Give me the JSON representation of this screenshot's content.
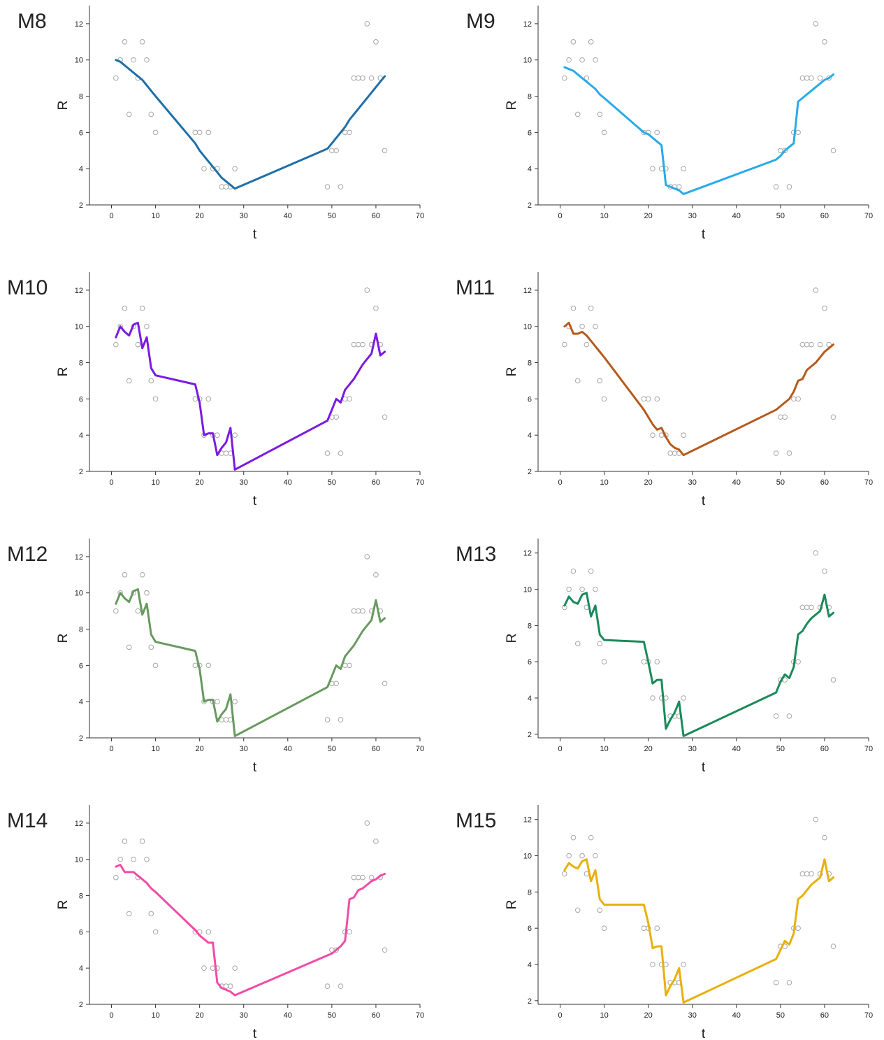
{
  "chart_data": [
    {
      "type": "line",
      "title": "M8",
      "x_label": "t",
      "y_label": "R",
      "xlim": [
        -5,
        70
      ],
      "ylim": [
        2,
        13
      ],
      "xticks": [
        0,
        10,
        20,
        30,
        40,
        50,
        60,
        70
      ],
      "yticks": [
        2,
        4,
        6,
        8,
        10,
        12
      ],
      "x": [
        1,
        2,
        3,
        4,
        5,
        6,
        7,
        8,
        9,
        10,
        19,
        20,
        21,
        22,
        23,
        24,
        25,
        26,
        27,
        28,
        49,
        50,
        51,
        52,
        53,
        54,
        55,
        56,
        57,
        58,
        59,
        60,
        61,
        62
      ],
      "series": [
        {
          "marker": "circle",
          "color": "#a6a6a6",
          "values": [
            9,
            10,
            11,
            7,
            10,
            9,
            11,
            10,
            7,
            6,
            6,
            6,
            4,
            6,
            4,
            4,
            3,
            3,
            3,
            4,
            3,
            5,
            5,
            3,
            6,
            6,
            9,
            9,
            9,
            12,
            9,
            11,
            9,
            5
          ]
        },
        {
          "marker": "none",
          "color": "#1f6fa8",
          "values": [
            10,
            9.9,
            9.7,
            9.5,
            9.3,
            9.1,
            8.9,
            8.6,
            8.3,
            8.0,
            5.4,
            5.0,
            4.7,
            4.4,
            4.1,
            3.8,
            3.5,
            3.3,
            3.1,
            2.9,
            5.1,
            5.4,
            5.7,
            6.0,
            6.3,
            6.7,
            7.0,
            7.3,
            7.6,
            7.9,
            8.2,
            8.5,
            8.8,
            9.1
          ]
        }
      ]
    },
    {
      "type": "line",
      "title": "M9",
      "x_label": "t",
      "y_label": "R",
      "xlim": [
        -5,
        70
      ],
      "ylim": [
        2,
        13
      ],
      "xticks": [
        0,
        10,
        20,
        30,
        40,
        50,
        60,
        70
      ],
      "yticks": [
        2,
        4,
        6,
        8,
        10,
        12
      ],
      "x": [
        1,
        2,
        3,
        4,
        5,
        6,
        7,
        8,
        9,
        10,
        19,
        20,
        21,
        22,
        23,
        24,
        25,
        26,
        27,
        28,
        49,
        50,
        51,
        52,
        53,
        54,
        55,
        56,
        57,
        58,
        59,
        60,
        61,
        62
      ],
      "series": [
        {
          "marker": "circle",
          "color": "#a6a6a6",
          "values": [
            9,
            10,
            11,
            7,
            10,
            9,
            11,
            10,
            7,
            6,
            6,
            6,
            4,
            6,
            4,
            4,
            3,
            3,
            3,
            4,
            3,
            5,
            5,
            3,
            6,
            6,
            9,
            9,
            9,
            12,
            9,
            11,
            9,
            5
          ]
        },
        {
          "marker": "none",
          "color": "#29aae8",
          "values": [
            9.6,
            9.5,
            9.4,
            9.2,
            9.0,
            8.8,
            8.6,
            8.4,
            8.1,
            7.9,
            6.0,
            5.9,
            5.7,
            5.5,
            5.3,
            3.1,
            3.0,
            2.9,
            2.8,
            2.6,
            4.5,
            4.7,
            5.0,
            5.2,
            5.4,
            7.7,
            7.9,
            8.1,
            8.3,
            8.5,
            8.7,
            8.9,
            9.0,
            9.2
          ]
        }
      ]
    },
    {
      "type": "line",
      "title": "M10",
      "x_label": "t",
      "y_label": "R",
      "xlim": [
        -5,
        70
      ],
      "ylim": [
        2,
        13
      ],
      "xticks": [
        0,
        10,
        20,
        30,
        40,
        50,
        60,
        70
      ],
      "yticks": [
        2,
        4,
        6,
        8,
        10,
        12
      ],
      "x": [
        1,
        2,
        3,
        4,
        5,
        6,
        7,
        8,
        9,
        10,
        19,
        20,
        21,
        22,
        23,
        24,
        25,
        26,
        27,
        28,
        49,
        50,
        51,
        52,
        53,
        54,
        55,
        56,
        57,
        58,
        59,
        60,
        61,
        62
      ],
      "series": [
        {
          "marker": "circle",
          "color": "#a6a6a6",
          "values": [
            9,
            10,
            11,
            7,
            10,
            9,
            11,
            10,
            7,
            6,
            6,
            6,
            4,
            6,
            4,
            4,
            3,
            3,
            3,
            4,
            3,
            5,
            5,
            3,
            6,
            6,
            9,
            9,
            9,
            12,
            9,
            11,
            9,
            5
          ]
        },
        {
          "marker": "none",
          "color": "#7a1be0",
          "values": [
            9.4,
            10.0,
            9.7,
            9.5,
            10.1,
            10.2,
            8.8,
            9.4,
            7.7,
            7.3,
            6.8,
            5.8,
            4.0,
            4.1,
            4.1,
            2.9,
            3.3,
            3.6,
            4.4,
            2.1,
            4.8,
            5.4,
            6.0,
            5.8,
            6.5,
            6.8,
            7.1,
            7.5,
            7.9,
            8.2,
            8.5,
            9.6,
            8.4,
            8.6
          ]
        }
      ]
    },
    {
      "type": "line",
      "title": "M11",
      "x_label": "t",
      "y_label": "R",
      "xlim": [
        -5,
        70
      ],
      "ylim": [
        2,
        13
      ],
      "xticks": [
        0,
        10,
        20,
        30,
        40,
        50,
        60,
        70
      ],
      "yticks": [
        2,
        4,
        6,
        8,
        10,
        12
      ],
      "x": [
        1,
        2,
        3,
        4,
        5,
        6,
        7,
        8,
        9,
        10,
        19,
        20,
        21,
        22,
        23,
        24,
        25,
        26,
        27,
        28,
        49,
        50,
        51,
        52,
        53,
        54,
        55,
        56,
        57,
        58,
        59,
        60,
        61,
        62
      ],
      "series": [
        {
          "marker": "circle",
          "color": "#a6a6a6",
          "values": [
            9,
            10,
            11,
            7,
            10,
            9,
            11,
            10,
            7,
            6,
            6,
            6,
            4,
            6,
            4,
            4,
            3,
            3,
            3,
            4,
            3,
            5,
            5,
            3,
            6,
            6,
            9,
            9,
            9,
            12,
            9,
            11,
            9,
            5
          ]
        },
        {
          "marker": "none",
          "color": "#b55a1c",
          "values": [
            10.0,
            10.2,
            9.6,
            9.6,
            9.7,
            9.5,
            9.2,
            8.9,
            8.6,
            8.3,
            5.4,
            5.0,
            4.6,
            4.3,
            4.4,
            3.9,
            3.5,
            3.3,
            3.2,
            2.9,
            5.4,
            5.6,
            5.8,
            6.0,
            6.4,
            7.0,
            7.1,
            7.6,
            7.8,
            8.0,
            8.3,
            8.6,
            8.8,
            9.0
          ]
        }
      ]
    },
    {
      "type": "line",
      "title": "M12",
      "x_label": "t",
      "y_label": "R",
      "xlim": [
        -5,
        70
      ],
      "ylim": [
        2,
        13
      ],
      "xticks": [
        0,
        10,
        20,
        30,
        40,
        50,
        60,
        70
      ],
      "yticks": [
        2,
        4,
        6,
        8,
        10,
        12
      ],
      "x": [
        1,
        2,
        3,
        4,
        5,
        6,
        7,
        8,
        9,
        10,
        19,
        20,
        21,
        22,
        23,
        24,
        25,
        26,
        27,
        28,
        49,
        50,
        51,
        52,
        53,
        54,
        55,
        56,
        57,
        58,
        59,
        60,
        61,
        62
      ],
      "series": [
        {
          "marker": "circle",
          "color": "#a6a6a6",
          "values": [
            9,
            10,
            11,
            7,
            10,
            9,
            11,
            10,
            7,
            6,
            6,
            6,
            4,
            6,
            4,
            4,
            3,
            3,
            3,
            4,
            3,
            5,
            5,
            3,
            6,
            6,
            9,
            9,
            9,
            12,
            9,
            11,
            9,
            5
          ]
        },
        {
          "marker": "none",
          "color": "#679a5f",
          "values": [
            9.4,
            10.0,
            9.7,
            9.5,
            10.1,
            10.2,
            8.8,
            9.4,
            7.7,
            7.3,
            6.8,
            5.8,
            4.0,
            4.1,
            4.1,
            2.9,
            3.3,
            3.6,
            4.4,
            2.1,
            4.8,
            5.4,
            6.0,
            5.8,
            6.5,
            6.8,
            7.1,
            7.5,
            7.9,
            8.2,
            8.5,
            9.6,
            8.4,
            8.6
          ]
        }
      ]
    },
    {
      "type": "line",
      "title": "M13",
      "x_label": "t",
      "y_label": "R",
      "xlim": [
        -5,
        70
      ],
      "ylim": [
        1.8,
        12.8
      ],
      "xticks": [
        0,
        10,
        20,
        30,
        40,
        50,
        60,
        70
      ],
      "yticks": [
        2,
        4,
        6,
        8,
        10,
        12
      ],
      "x": [
        1,
        2,
        3,
        4,
        5,
        6,
        7,
        8,
        9,
        10,
        19,
        20,
        21,
        22,
        23,
        24,
        25,
        26,
        27,
        28,
        49,
        50,
        51,
        52,
        53,
        54,
        55,
        56,
        57,
        58,
        59,
        60,
        61,
        62
      ],
      "series": [
        {
          "marker": "circle",
          "color": "#a6a6a6",
          "values": [
            9,
            10,
            11,
            7,
            10,
            9,
            11,
            10,
            7,
            6,
            6,
            6,
            4,
            6,
            4,
            4,
            3,
            3,
            3,
            4,
            3,
            5,
            5,
            3,
            6,
            6,
            9,
            9,
            9,
            12,
            9,
            11,
            9,
            5
          ]
        },
        {
          "marker": "none",
          "color": "#1b8a5a",
          "values": [
            9.1,
            9.6,
            9.3,
            9.2,
            9.7,
            9.8,
            8.5,
            9.1,
            7.5,
            7.2,
            7.1,
            6.0,
            4.8,
            5.0,
            5.0,
            2.3,
            2.8,
            3.2,
            3.8,
            1.9,
            4.3,
            4.9,
            5.3,
            5.1,
            5.7,
            7.5,
            7.7,
            8.1,
            8.4,
            8.6,
            8.8,
            9.7,
            8.5,
            8.7
          ]
        }
      ]
    },
    {
      "type": "line",
      "title": "M14",
      "x_label": "t",
      "y_label": "R",
      "xlim": [
        -5,
        70
      ],
      "ylim": [
        2,
        13
      ],
      "xticks": [
        0,
        10,
        20,
        30,
        40,
        50,
        60,
        70
      ],
      "yticks": [
        2,
        4,
        6,
        8,
        10,
        12
      ],
      "x": [
        1,
        2,
        3,
        4,
        5,
        6,
        7,
        8,
        9,
        10,
        19,
        20,
        21,
        22,
        23,
        24,
        25,
        26,
        27,
        28,
        49,
        50,
        51,
        52,
        53,
        54,
        55,
        56,
        57,
        58,
        59,
        60,
        61,
        62
      ],
      "series": [
        {
          "marker": "circle",
          "color": "#a6a6a6",
          "values": [
            9,
            10,
            11,
            7,
            10,
            9,
            11,
            10,
            7,
            6,
            6,
            6,
            4,
            6,
            4,
            4,
            3,
            3,
            3,
            4,
            3,
            5,
            5,
            3,
            6,
            6,
            9,
            9,
            9,
            12,
            9,
            11,
            9,
            5
          ]
        },
        {
          "marker": "none",
          "color": "#f24ba8",
          "values": [
            9.6,
            9.7,
            9.3,
            9.3,
            9.3,
            9.1,
            8.9,
            8.7,
            8.4,
            8.2,
            6.1,
            5.8,
            5.6,
            5.4,
            5.4,
            3.2,
            2.9,
            2.8,
            2.7,
            2.5,
            4.7,
            4.8,
            5.0,
            5.2,
            5.5,
            7.8,
            7.9,
            8.3,
            8.4,
            8.6,
            8.8,
            8.9,
            9.1,
            9.2
          ]
        }
      ]
    },
    {
      "type": "line",
      "title": "M15",
      "x_label": "t",
      "y_label": "R",
      "xlim": [
        -5,
        70
      ],
      "ylim": [
        1.8,
        12.8
      ],
      "xticks": [
        0,
        10,
        20,
        30,
        40,
        50,
        60,
        70
      ],
      "yticks": [
        2,
        4,
        6,
        8,
        10,
        12
      ],
      "x": [
        1,
        2,
        3,
        4,
        5,
        6,
        7,
        8,
        9,
        10,
        19,
        20,
        21,
        22,
        23,
        24,
        25,
        26,
        27,
        28,
        49,
        50,
        51,
        52,
        53,
        54,
        55,
        56,
        57,
        58,
        59,
        60,
        61,
        62
      ],
      "series": [
        {
          "marker": "circle",
          "color": "#a6a6a6",
          "values": [
            9,
            10,
            11,
            7,
            10,
            9,
            11,
            10,
            7,
            6,
            6,
            6,
            4,
            6,
            4,
            4,
            3,
            3,
            3,
            4,
            3,
            5,
            5,
            3,
            6,
            6,
            9,
            9,
            9,
            12,
            9,
            11,
            9,
            5
          ]
        },
        {
          "marker": "none",
          "color": "#e8b010",
          "values": [
            9.2,
            9.6,
            9.4,
            9.3,
            9.7,
            9.8,
            8.6,
            9.2,
            7.6,
            7.3,
            7.3,
            6.3,
            4.9,
            5.0,
            5.0,
            2.3,
            2.8,
            3.2,
            3.8,
            1.9,
            4.3,
            4.8,
            5.3,
            5.1,
            5.7,
            7.6,
            7.8,
            8.1,
            8.4,
            8.6,
            8.8,
            9.8,
            8.6,
            8.8
          ]
        }
      ]
    }
  ]
}
